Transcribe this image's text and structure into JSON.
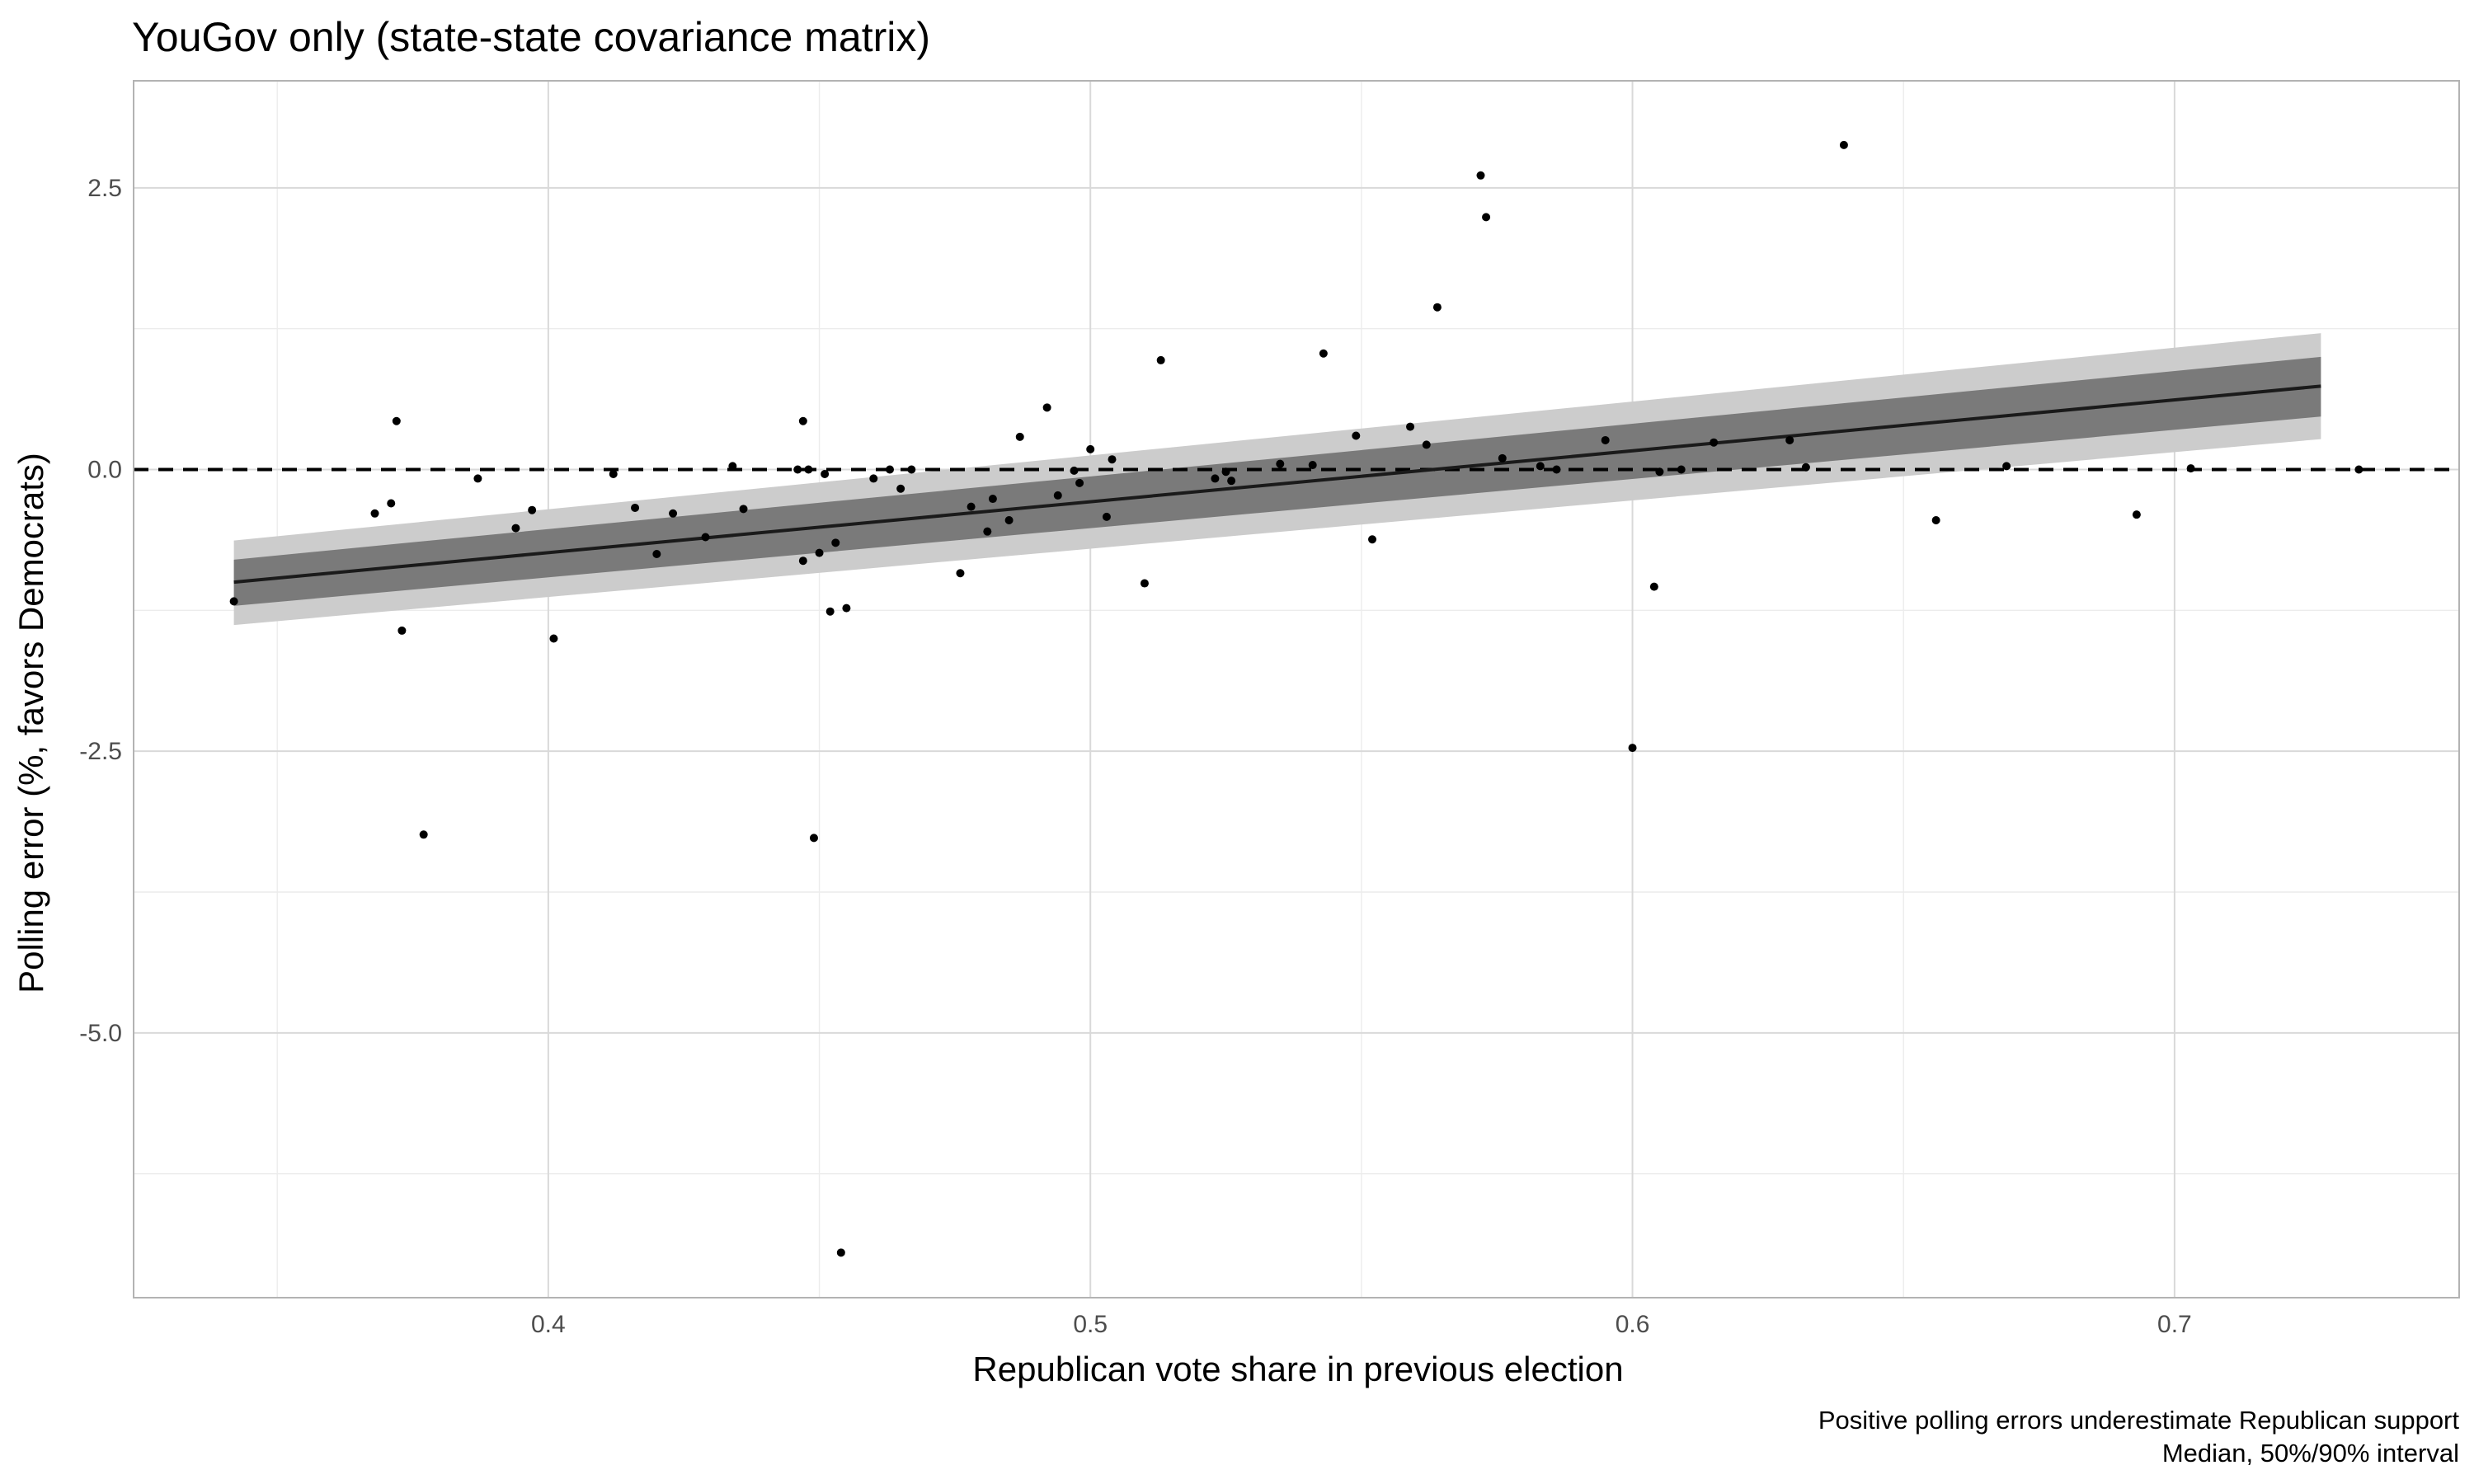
{
  "chart_data": {
    "type": "scatter",
    "title": "YouGov only (state-state covariance matrix)",
    "xlabel": "Republican vote share in previous election",
    "ylabel": "Polling error (%, favors Democrats)",
    "caption": [
      "Positive polling errors underestimate Republican support",
      "Median, 50%/90% interval"
    ],
    "xlim": [
      0.3235,
      0.7525
    ],
    "ylim": [
      -7.35,
      3.45
    ],
    "x_ticks": [
      0.4,
      0.5,
      0.6,
      0.7
    ],
    "x_tick_labels": [
      "0.4",
      "0.5",
      "0.6",
      "0.7"
    ],
    "x_minor_ticks": [
      0.35,
      0.45,
      0.55,
      0.65
    ],
    "y_ticks": [
      2.5,
      0.0,
      -2.5,
      -5.0
    ],
    "y_tick_labels": [
      "2.5",
      "0.0",
      "-2.5",
      "-5.0"
    ],
    "y_minor_ticks": [
      1.25,
      -1.25,
      -3.75,
      -6.25
    ],
    "grid": true,
    "reference_line": {
      "y": 0,
      "style": "dashed",
      "color": "#000000"
    },
    "fit": {
      "x_range": [
        0.342,
        0.727
      ],
      "median": [
        -1.0,
        0.74
      ],
      "interval_50_lower": [
        -1.21,
        0.47
      ],
      "interval_50_upper": [
        -0.8,
        1.0
      ],
      "interval_90_lower": [
        -1.38,
        0.27
      ],
      "interval_90_upper": [
        -0.63,
        1.21
      ],
      "colors": {
        "median": "#1a1a1a",
        "interval_50": "#7a7a7a",
        "interval_90": "#cccccc"
      }
    },
    "points": {
      "color": "#000000",
      "x": [
        0.342,
        0.368,
        0.371,
        0.372,
        0.373,
        0.377,
        0.387,
        0.394,
        0.397,
        0.401,
        0.412,
        0.416,
        0.42,
        0.423,
        0.429,
        0.434,
        0.436,
        0.446,
        0.447,
        0.447,
        0.448,
        0.449,
        0.45,
        0.451,
        0.452,
        0.453,
        0.454,
        0.455,
        0.46,
        0.463,
        0.465,
        0.467,
        0.476,
        0.478,
        0.481,
        0.482,
        0.485,
        0.487,
        0.492,
        0.494,
        0.497,
        0.498,
        0.5,
        0.503,
        0.504,
        0.51,
        0.513,
        0.523,
        0.525,
        0.526,
        0.535,
        0.541,
        0.543,
        0.549,
        0.552,
        0.559,
        0.562,
        0.564,
        0.572,
        0.573,
        0.576,
        0.583,
        0.586,
        0.595,
        0.6,
        0.604,
        0.605,
        0.609,
        0.615,
        0.629,
        0.632,
        0.639,
        0.656,
        0.669,
        0.693,
        0.703,
        0.734
      ],
      "y": [
        -1.17,
        -0.39,
        -0.3,
        0.43,
        -1.43,
        -3.24,
        -0.08,
        -0.52,
        -0.36,
        -1.5,
        -0.04,
        -0.34,
        -0.75,
        -0.39,
        -0.6,
        0.03,
        -0.35,
        0.0,
        -0.81,
        0.43,
        0.0,
        -3.27,
        -0.74,
        -0.04,
        -1.26,
        -0.65,
        -6.95,
        -1.23,
        -0.08,
        0.0,
        -0.17,
        0.0,
        -0.92,
        -0.33,
        -0.55,
        -0.26,
        -0.45,
        0.29,
        0.55,
        -0.23,
        -0.01,
        -0.12,
        0.18,
        -0.42,
        0.09,
        -1.01,
        0.97,
        -0.08,
        -0.02,
        -0.1,
        0.05,
        0.04,
        1.03,
        0.3,
        -0.62,
        0.38,
        0.22,
        1.44,
        2.61,
        2.24,
        0.1,
        0.03,
        0.0,
        0.26,
        -2.47,
        -1.04,
        -0.02,
        0.0,
        0.24,
        0.26,
        0.02,
        2.88,
        -0.45,
        0.03,
        -0.4,
        0.01,
        0.0
      ]
    }
  }
}
